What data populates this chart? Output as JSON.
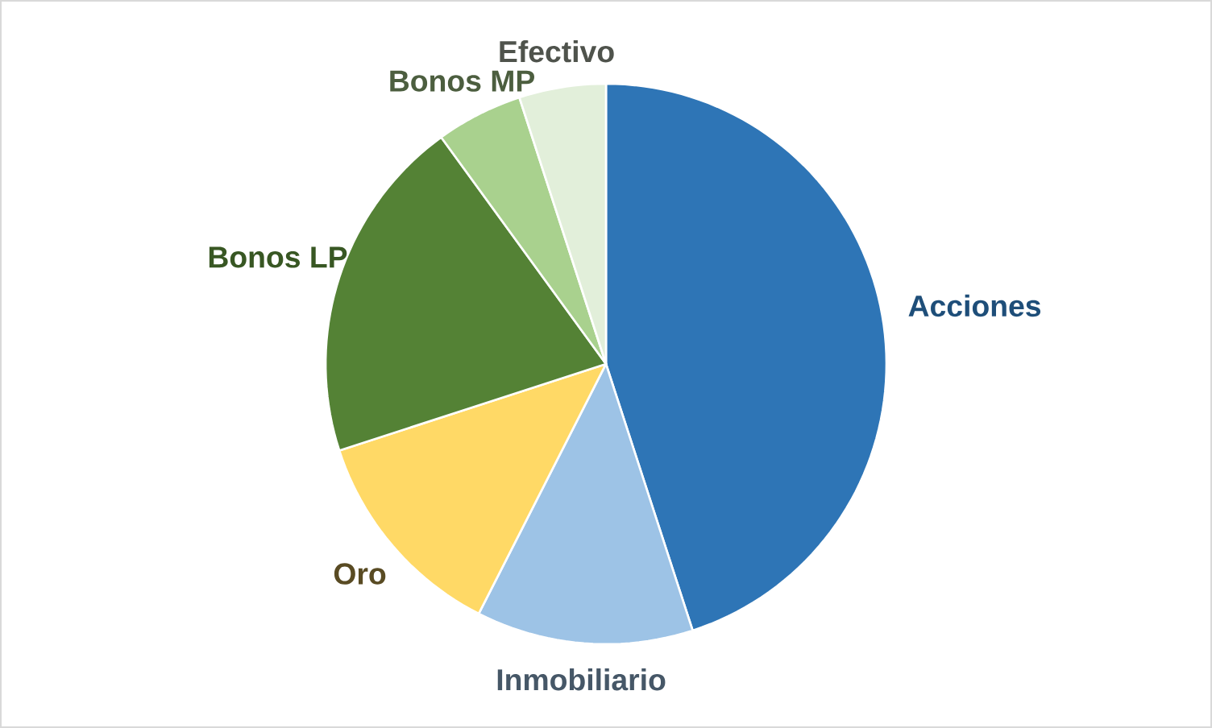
{
  "chart_data": {
    "type": "pie",
    "categories": [
      "Acciones",
      "Inmobiliario",
      "Oro",
      "Bonos LP",
      "Bonos MP",
      "Efectivo"
    ],
    "values": [
      45,
      12.5,
      12.5,
      20,
      5,
      5
    ],
    "colors": [
      "#2e75b6",
      "#9dc3e6",
      "#ffd966",
      "#548235",
      "#a9d18e",
      "#e2efda"
    ]
  }
}
